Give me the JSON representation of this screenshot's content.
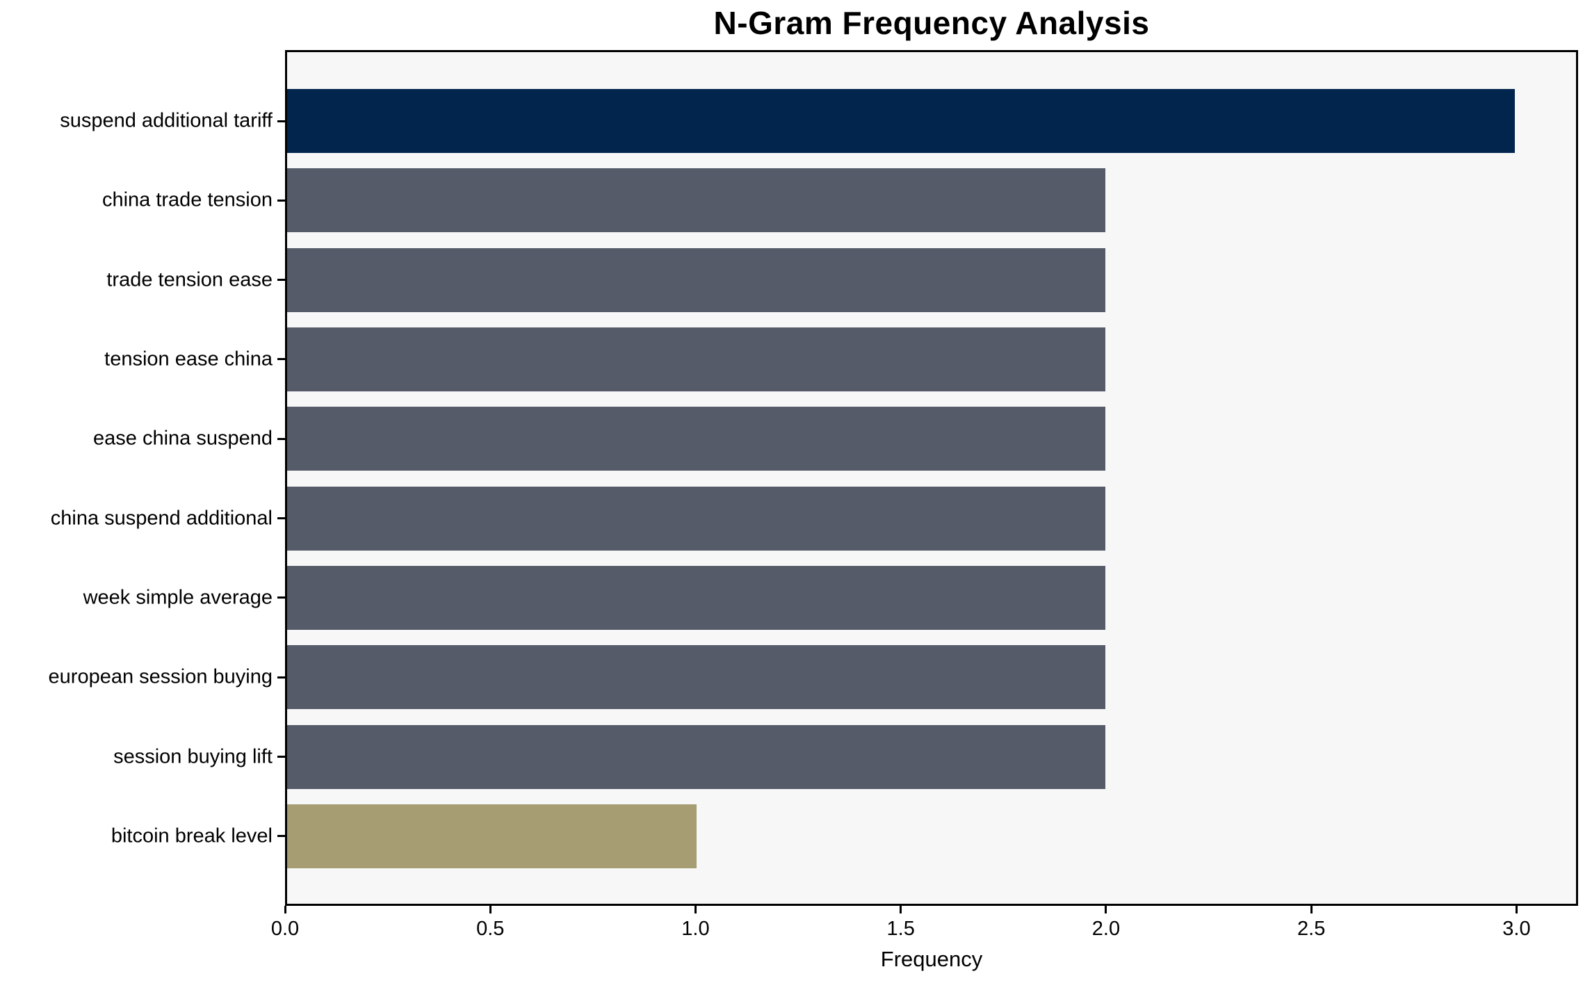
{
  "chart_data": {
    "type": "bar",
    "orientation": "horizontal",
    "title": "N-Gram Frequency Analysis",
    "xlabel": "Frequency",
    "ylabel": "",
    "categories": [
      "suspend additional tariff",
      "china trade tension",
      "trade tension ease",
      "tension ease china",
      "ease china suspend",
      "china suspend additional",
      "week simple average",
      "european session buying",
      "session buying lift",
      "bitcoin break level"
    ],
    "values": [
      3,
      2,
      2,
      2,
      2,
      2,
      2,
      2,
      2,
      1
    ],
    "bar_colors": [
      "#02254d",
      "#565b69",
      "#565b69",
      "#565b69",
      "#565b69",
      "#565b69",
      "#565b69",
      "#565b69",
      "#565b69",
      "#a69d72"
    ],
    "xlim": [
      0,
      3.15
    ],
    "xticks": [
      0,
      0.5,
      1,
      1.5,
      2,
      2.5,
      3
    ],
    "xtick_labels": [
      "0.0",
      "0.5",
      "1.0",
      "1.5",
      "2.0",
      "2.5",
      "3.0"
    ],
    "grid": false,
    "legend_position": "none",
    "colors": {
      "highlight_bar": "#02254d",
      "default_bar": "#565b69",
      "lowest_bar": "#a69d72",
      "plot_background": "#f7f7f7",
      "figure_background": "#ffffff",
      "spine": "#000000",
      "text": "#000000"
    }
  }
}
